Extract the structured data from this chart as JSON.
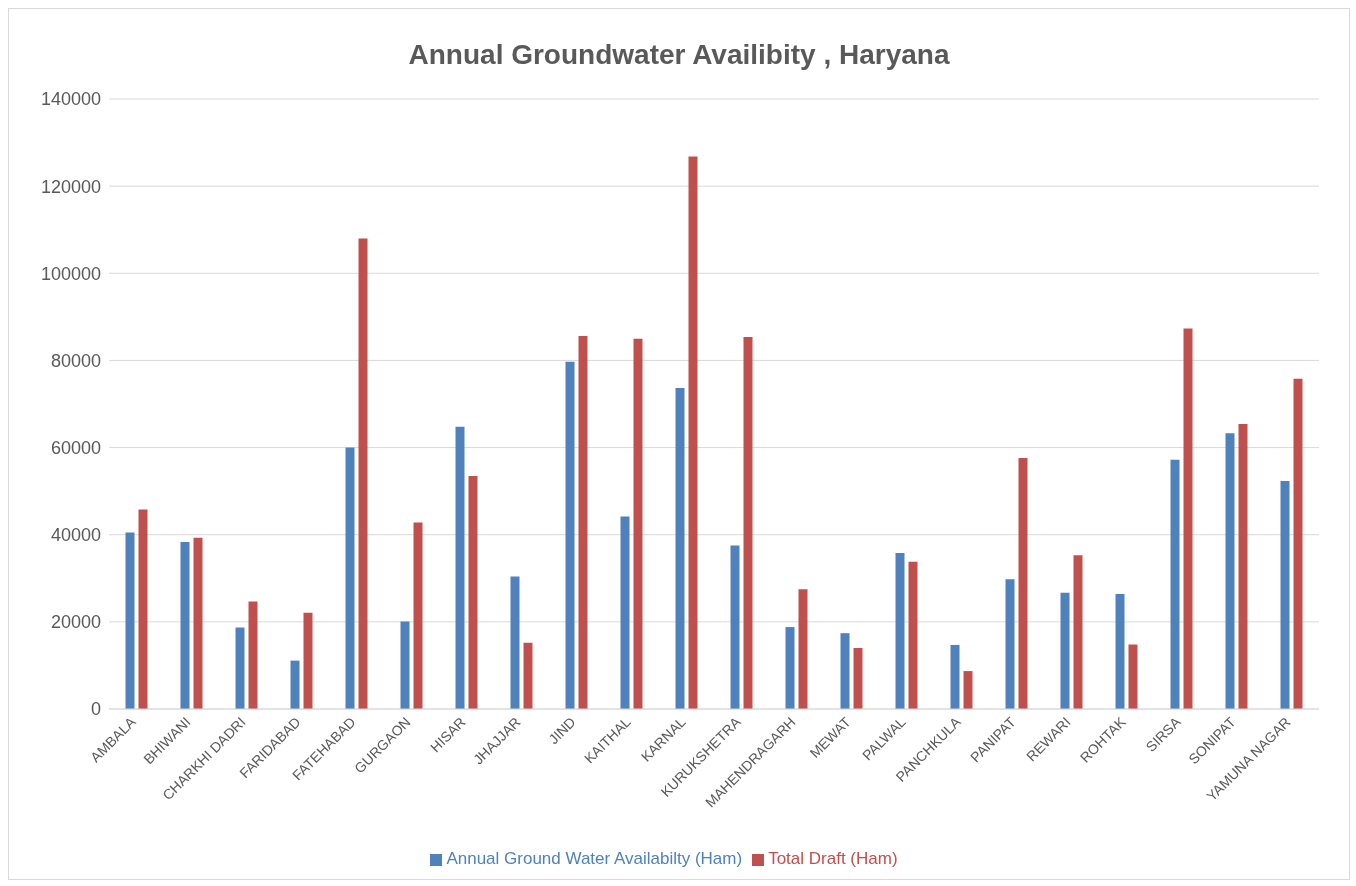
{
  "chart_data": {
    "type": "bar",
    "title": "Annual Groundwater Availibity , Haryana",
    "categories": [
      "AMBALA",
      "BHIWANI",
      "CHARKHI DADRI",
      "FARIDABAD",
      "FATEHABAD",
      "GURGAON",
      "HISAR",
      "JHAJJAR",
      "JIND",
      "KAITHAL",
      "KARNAL",
      "KURUKSHETRA",
      "MAHENDRAGARH",
      "MEWAT",
      "PALWAL",
      "PANCHKULA",
      "PANIPAT",
      "REWARI",
      "ROHTAK",
      "SIRSA",
      "SONIPAT",
      "YAMUNA NAGAR"
    ],
    "series": [
      {
        "name": "Annual Ground Water Availabilty (Ham)",
        "color": "#4f81bd",
        "values": [
          40500,
          38300,
          18700,
          11100,
          60000,
          20100,
          64800,
          30400,
          79700,
          44200,
          73700,
          37500,
          18800,
          17400,
          35800,
          14700,
          29800,
          26700,
          26400,
          57200,
          63300,
          52300
        ]
      },
      {
        "name": "Total Draft (Ham)",
        "color": "#c0504d",
        "values": [
          45800,
          39300,
          24700,
          22100,
          108000,
          42800,
          53500,
          15200,
          85600,
          85000,
          126800,
          85400,
          27500,
          14000,
          33800,
          8700,
          57600,
          35300,
          14800,
          87300,
          65400,
          75800
        ]
      }
    ],
    "ylim": [
      0,
      140000
    ],
    "yticks": [
      0,
      20000,
      40000,
      60000,
      80000,
      100000,
      120000,
      140000
    ],
    "grid": "y",
    "legend": "bottom"
  }
}
